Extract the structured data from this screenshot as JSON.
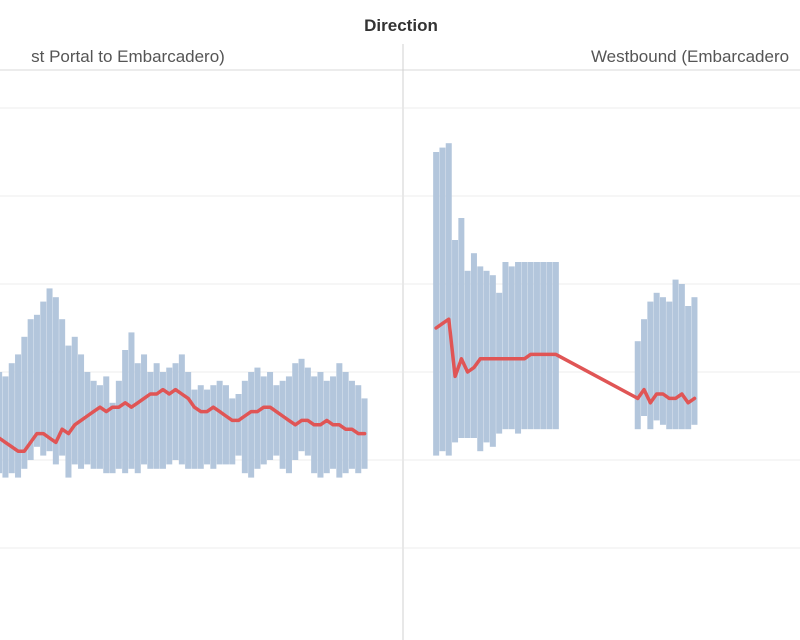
{
  "header": {
    "title": "Direction"
  },
  "chart_data": [
    {
      "type": "bar",
      "title": "st Portal to Embarcadero)",
      "xlabel": "",
      "ylabel": "",
      "ylim": [
        0,
        7
      ],
      "grid": true,
      "colors": {
        "range": "#b3c6dc",
        "median": "#e05555"
      },
      "x": [
        1,
        2,
        3,
        4,
        5,
        6,
        7,
        8,
        9,
        10,
        11,
        12,
        13,
        14,
        15,
        16,
        17,
        18,
        19,
        20,
        21,
        22,
        23,
        24,
        25,
        26,
        27,
        28,
        29,
        30,
        31,
        32,
        33,
        34,
        35,
        36,
        37,
        38,
        39,
        40,
        41,
        42,
        43,
        44,
        45,
        46,
        47,
        48,
        49,
        50,
        51,
        52,
        53,
        54,
        55,
        56,
        57,
        58,
        59
      ],
      "series": [
        {
          "role": "range-high",
          "values": [
            3.0,
            2.95,
            3.1,
            3.2,
            3.4,
            3.6,
            3.65,
            3.8,
            3.95,
            3.85,
            3.6,
            3.3,
            3.4,
            3.2,
            3.0,
            2.9,
            2.85,
            2.95,
            2.65,
            2.9,
            3.25,
            3.45,
            3.1,
            3.2,
            3.0,
            3.1,
            3.0,
            3.05,
            3.1,
            3.2,
            3.0,
            2.8,
            2.85,
            2.8,
            2.85,
            2.9,
            2.85,
            2.7,
            2.75,
            2.9,
            3.0,
            3.05,
            2.95,
            3.0,
            2.85,
            2.9,
            2.95,
            3.1,
            3.15,
            3.05,
            2.95,
            3.0,
            2.9,
            2.95,
            3.1,
            3.0,
            2.9,
            2.85,
            2.7
          ]
        },
        {
          "role": "range-low",
          "values": [
            1.85,
            1.8,
            1.85,
            1.8,
            1.9,
            2.0,
            2.15,
            2.05,
            2.1,
            1.95,
            2.05,
            1.8,
            1.95,
            1.9,
            1.95,
            1.9,
            1.9,
            1.85,
            1.85,
            1.9,
            1.85,
            1.9,
            1.85,
            1.95,
            1.9,
            1.9,
            1.9,
            1.95,
            2.0,
            1.95,
            1.9,
            1.9,
            1.9,
            1.95,
            1.9,
            1.95,
            1.95,
            1.95,
            2.05,
            1.85,
            1.8,
            1.9,
            1.95,
            2.0,
            2.05,
            1.9,
            1.85,
            2.0,
            2.1,
            2.05,
            1.85,
            1.8,
            1.85,
            1.9,
            1.8,
            1.85,
            1.9,
            1.85,
            1.9
          ]
        },
        {
          "role": "median",
          "values": [
            2.25,
            2.2,
            2.15,
            2.1,
            2.1,
            2.2,
            2.3,
            2.3,
            2.25,
            2.2,
            2.35,
            2.3,
            2.4,
            2.45,
            2.5,
            2.55,
            2.6,
            2.55,
            2.6,
            2.6,
            2.65,
            2.6,
            2.65,
            2.7,
            2.75,
            2.75,
            2.8,
            2.75,
            2.8,
            2.75,
            2.7,
            2.6,
            2.55,
            2.55,
            2.6,
            2.55,
            2.5,
            2.45,
            2.45,
            2.5,
            2.55,
            2.55,
            2.6,
            2.6,
            2.55,
            2.5,
            2.45,
            2.4,
            2.45,
            2.45,
            2.4,
            2.4,
            2.45,
            2.4,
            2.4,
            2.35,
            2.35,
            2.3,
            2.3
          ]
        }
      ]
    },
    {
      "type": "bar",
      "title": "Westbound (Embarcadero",
      "xlabel": "",
      "ylabel": "",
      "ylim": [
        0,
        7
      ],
      "grid": true,
      "colors": {
        "range": "#b3c6dc",
        "median": "#e05555"
      },
      "x": [
        1,
        2,
        3,
        4,
        5,
        6,
        7,
        8,
        9,
        10,
        11,
        12,
        13,
        14,
        15,
        16,
        17,
        18,
        19,
        20,
        33,
        34,
        35,
        36,
        37,
        38,
        39,
        40,
        41,
        42
      ],
      "series": [
        {
          "role": "range-high",
          "values": [
            5.5,
            5.55,
            5.6,
            4.5,
            4.75,
            4.15,
            4.35,
            4.2,
            4.15,
            4.1,
            3.9,
            4.25,
            4.2,
            4.25,
            4.25,
            4.25,
            4.25,
            4.25,
            4.25,
            4.25,
            3.35,
            3.6,
            3.8,
            3.9,
            3.85,
            3.8,
            4.05,
            4.0,
            3.75,
            3.85
          ]
        },
        {
          "role": "range-low",
          "values": [
            2.05,
            2.1,
            2.05,
            2.2,
            2.25,
            2.25,
            2.25,
            2.1,
            2.2,
            2.15,
            2.3,
            2.35,
            2.35,
            2.3,
            2.35,
            2.35,
            2.35,
            2.35,
            2.35,
            2.35,
            2.35,
            2.5,
            2.35,
            2.45,
            2.4,
            2.35,
            2.35,
            2.35,
            2.35,
            2.4
          ]
        },
        {
          "role": "median",
          "values": [
            3.5,
            3.55,
            3.6,
            2.95,
            3.15,
            3.0,
            3.05,
            3.15,
            3.15,
            3.15,
            3.15,
            3.15,
            3.15,
            3.15,
            3.15,
            3.2,
            3.2,
            3.2,
            3.2,
            3.2,
            2.7,
            2.8,
            2.65,
            2.75,
            2.75,
            2.7,
            2.7,
            2.75,
            2.65,
            2.7
          ]
        }
      ]
    }
  ]
}
